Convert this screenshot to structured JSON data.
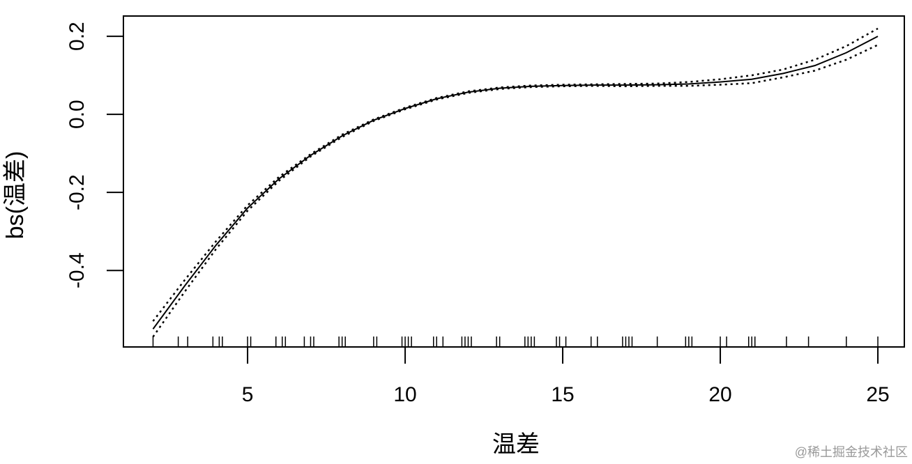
{
  "chart_data": {
    "type": "line",
    "x_label": "温差",
    "y_label": "bs(温差)",
    "watermark": "@稀土掘金技术社区",
    "x": [
      2,
      3,
      4,
      5,
      6,
      7,
      8,
      9,
      10,
      11,
      12,
      13,
      14,
      15,
      16,
      17,
      18,
      19,
      20,
      21,
      22,
      23,
      24,
      25
    ],
    "series": [
      {
        "color": "#000000",
        "linestyle": "solid",
        "values": [
          -0.55,
          -0.44,
          -0.335,
          -0.24,
          -0.165,
          -0.105,
          -0.055,
          -0.015,
          0.015,
          0.04,
          0.057,
          0.067,
          0.072,
          0.074,
          0.075,
          0.075,
          0.076,
          0.078,
          0.083,
          0.09,
          0.105,
          0.125,
          0.158,
          0.2
        ]
      },
      {
        "color": "#000000",
        "linestyle": "dotted",
        "values": [
          -0.53,
          -0.425,
          -0.325,
          -0.233,
          -0.16,
          -0.102,
          -0.052,
          -0.013,
          0.017,
          0.042,
          0.059,
          0.069,
          0.074,
          0.076,
          0.077,
          0.078,
          0.079,
          0.083,
          0.09,
          0.1,
          0.115,
          0.14,
          0.175,
          0.22
        ]
      },
      {
        "color": "#000000",
        "linestyle": "dotted",
        "values": [
          -0.57,
          -0.455,
          -0.345,
          -0.247,
          -0.17,
          -0.108,
          -0.058,
          -0.017,
          0.013,
          0.038,
          0.055,
          0.065,
          0.07,
          0.072,
          0.073,
          0.072,
          0.073,
          0.073,
          0.076,
          0.08,
          0.095,
          0.112,
          0.14,
          0.178
        ]
      }
    ],
    "rug": [
      2.0,
      2.8,
      3.1,
      3.9,
      4.1,
      4.2,
      5.0,
      5.1,
      5.9,
      6.1,
      6.2,
      6.8,
      7.0,
      7.1,
      7.9,
      8.0,
      8.1,
      9.0,
      9.1,
      9.9,
      10.0,
      10.1,
      10.2,
      10.9,
      11.0,
      11.2,
      11.8,
      11.9,
      12.0,
      12.1,
      12.9,
      13.0,
      13.8,
      13.9,
      14.0,
      14.1,
      14.8,
      14.9,
      15.1,
      15.9,
      16.1,
      16.9,
      17.0,
      17.1,
      17.2,
      18.0,
      18.9,
      19.0,
      19.1,
      20.0,
      20.2,
      20.9,
      21.0,
      21.1,
      22.1,
      22.8,
      24.0,
      25.0
    ],
    "xlim": [
      1.06,
      25.84
    ],
    "ylim": [
      -0.596,
      0.252
    ],
    "xticks": [
      5,
      10,
      15,
      20,
      25
    ],
    "yticks": [
      -0.4,
      -0.2,
      {
        "value": 0,
        "label": "0.0"
      },
      0.2
    ]
  }
}
